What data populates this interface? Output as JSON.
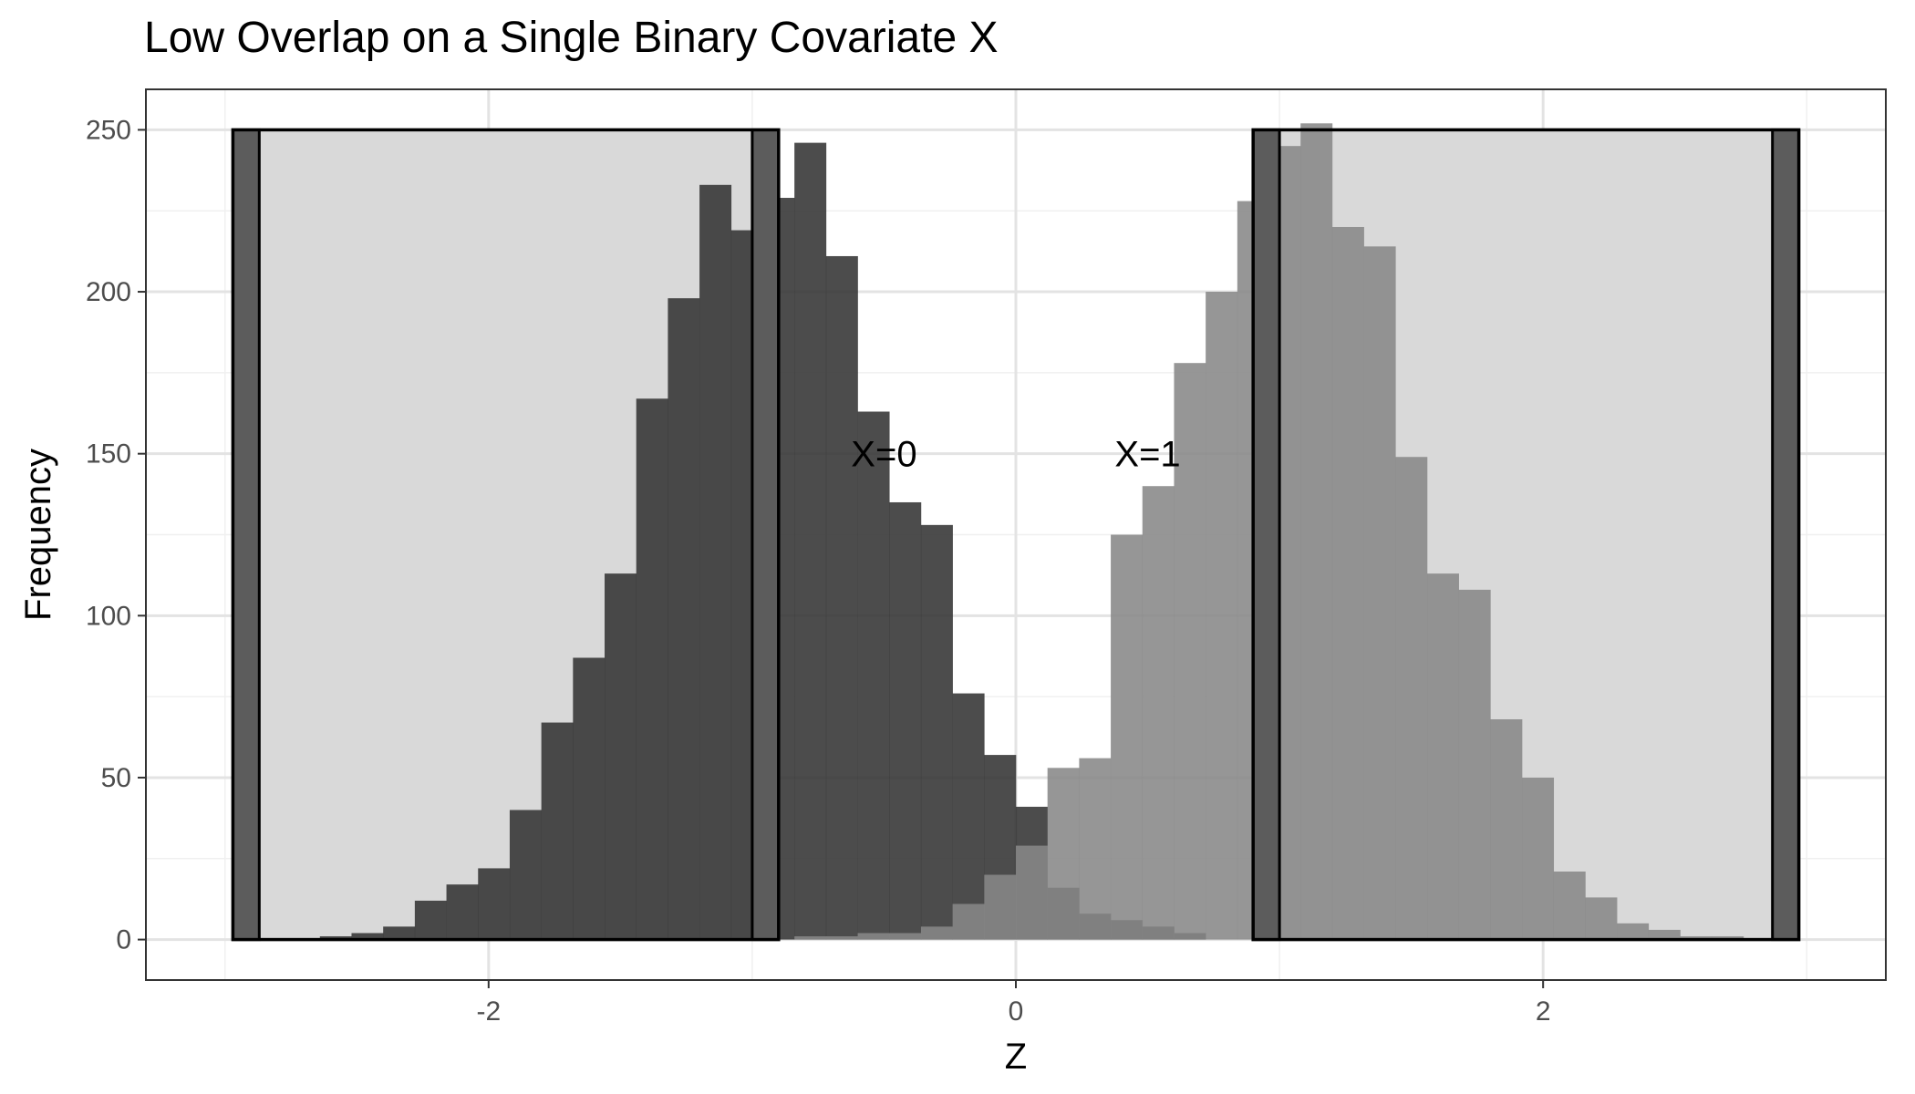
{
  "chart_data": {
    "type": "histogram",
    "title": "Low Overlap on a Single Binary Covariate X",
    "xlabel": "Z",
    "ylabel": "Frequency",
    "xlim": [
      -3.3,
      3.3
    ],
    "ylim": [
      -12.5,
      262.5
    ],
    "x_ticks": [
      -2,
      0,
      2
    ],
    "x_tick_labels": [
      "-2",
      "0",
      "2"
    ],
    "y_ticks": [
      0,
      50,
      100,
      150,
      200,
      250
    ],
    "y_tick_labels": [
      "0",
      "50",
      "100",
      "150",
      "200",
      "250"
    ],
    "grid": true,
    "bin_width": 0.12,
    "series": [
      {
        "name": "X=0",
        "color": "#333333",
        "opacity": 0.88,
        "bin_left": [
          -2.64,
          -2.52,
          -2.4,
          -2.28,
          -2.16,
          -2.04,
          -1.92,
          -1.8,
          -1.68,
          -1.56,
          -1.44,
          -1.32,
          -1.2,
          -1.08,
          -0.96,
          -0.84,
          -0.72,
          -0.6,
          -0.48,
          -0.36,
          -0.24,
          -0.12,
          0.0,
          0.12,
          0.24,
          0.36,
          0.48,
          0.6
        ],
        "counts": [
          1,
          2,
          4,
          12,
          17,
          22,
          40,
          67,
          87,
          113,
          167,
          198,
          233,
          219,
          229,
          246,
          211,
          163,
          135,
          128,
          76,
          57,
          41,
          16,
          8,
          6,
          4,
          2
        ]
      },
      {
        "name": "X=1",
        "color": "#888888",
        "opacity": 0.88,
        "bin_left": [
          -0.84,
          -0.72,
          -0.6,
          -0.48,
          -0.36,
          -0.24,
          -0.12,
          0.0,
          0.12,
          0.24,
          0.36,
          0.48,
          0.6,
          0.72,
          0.84,
          0.96,
          1.08,
          1.2,
          1.32,
          1.44,
          1.56,
          1.68,
          1.8,
          1.92,
          2.04,
          2.16,
          2.28,
          2.4,
          2.52,
          2.64
        ],
        "counts": [
          1,
          1,
          2,
          2,
          4,
          11,
          20,
          29,
          53,
          56,
          125,
          140,
          178,
          200,
          228,
          245,
          252,
          220,
          214,
          149,
          113,
          108,
          68,
          50,
          21,
          13,
          5,
          3,
          1,
          1
        ]
      }
    ],
    "overlap_regions": [
      {
        "x_min": -2.97,
        "x_max": -0.9,
        "y_max": 250
      },
      {
        "x_min": 0.9,
        "x_max": 2.97,
        "y_max": 250
      }
    ],
    "region_edge_width": 0.1,
    "annotations": [
      {
        "text": "X=0",
        "x": -0.5,
        "y": 150
      },
      {
        "text": "X=1",
        "x": 0.5,
        "y": 150
      }
    ]
  }
}
